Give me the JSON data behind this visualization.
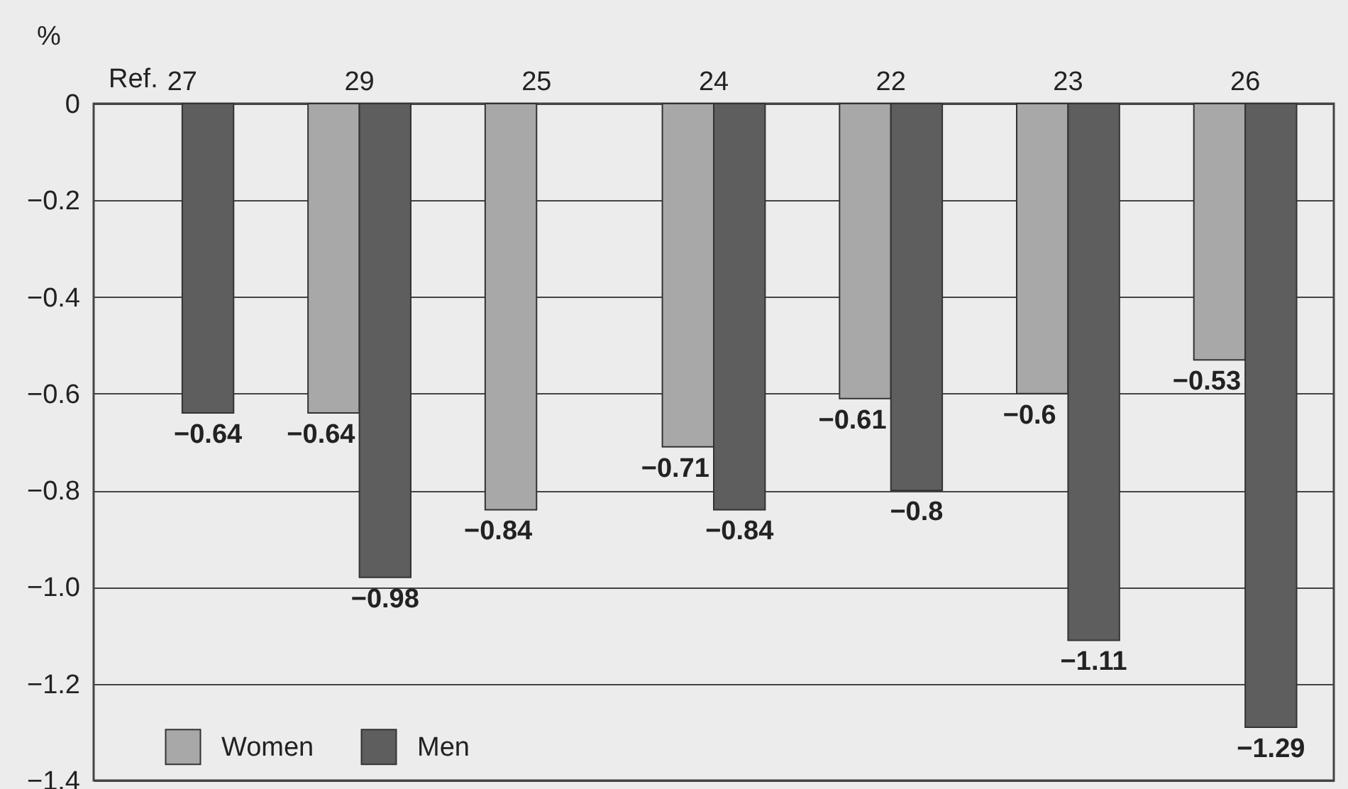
{
  "chart_data": {
    "type": "bar",
    "xlabel": "Ref.",
    "ylabel": "%",
    "categories": [
      "27",
      "29",
      "25",
      "24",
      "22",
      "23",
      "26"
    ],
    "series": [
      {
        "name": "Women",
        "color": "#a8a8a8",
        "values": [
          null,
          -0.64,
          -0.84,
          -0.71,
          -0.61,
          -0.6,
          -0.53
        ]
      },
      {
        "name": "Men",
        "color": "#5e5e5e",
        "values": [
          -0.64,
          -0.98,
          null,
          -0.84,
          -0.8,
          -1.11,
          -1.29
        ]
      }
    ],
    "ylim": [
      -1.4,
      0
    ],
    "yticks": [
      {
        "value": 0,
        "label": "0"
      },
      -0.2,
      -0.4,
      -0.6,
      -0.8,
      {
        "value": -1.0,
        "label": "−1.0"
      },
      -1.2,
      -1.4
    ],
    "grid": "y",
    "legend": "bottom left",
    "data_labels": true
  }
}
